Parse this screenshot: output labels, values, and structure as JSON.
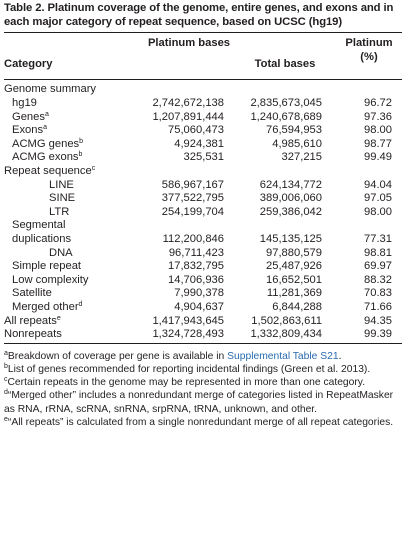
{
  "caption": {
    "label": "Table 2.",
    "title": "Platinum coverage of the genome, entire genes, and exons and in each major category of repeat sequence, based on UCSC (hg19)"
  },
  "header": {
    "category": "Category",
    "platinum_bases": "Platinum bases",
    "total_bases": "Total bases",
    "platinum_pct": "Platinum (%)"
  },
  "rows": [
    {
      "category": "Genome summary",
      "sup": "",
      "indent": 0,
      "platinum": "",
      "total": "",
      "pct": ""
    },
    {
      "category": "hg19",
      "sup": "",
      "indent": 1,
      "platinum": "2,742,672,138",
      "total": "2,835,673,045",
      "pct": "96.72"
    },
    {
      "category": "Genes",
      "sup": "a",
      "indent": 1,
      "platinum": "1,207,891,444",
      "total": "1,240,678,689",
      "pct": "97.36"
    },
    {
      "category": "Exons",
      "sup": "a",
      "indent": 1,
      "platinum": "75,060,473",
      "total": "76,594,953",
      "pct": "98.00"
    },
    {
      "category": "ACMG genes",
      "sup": "b",
      "indent": 1,
      "platinum": "4,924,381",
      "total": "4,985,610",
      "pct": "98.77"
    },
    {
      "category": "ACMG exons",
      "sup": "b",
      "indent": 1,
      "platinum": "325,531",
      "total": "327,215",
      "pct": "99.49"
    },
    {
      "category": "Repeat sequence",
      "sup": "c",
      "indent": 0,
      "platinum": "",
      "total": "",
      "pct": ""
    },
    {
      "category": "LINE",
      "sup": "",
      "indent": 2,
      "platinum": "586,967,167",
      "total": "624,134,772",
      "pct": "94.04"
    },
    {
      "category": "SINE",
      "sup": "",
      "indent": 2,
      "platinum": "377,522,795",
      "total": "389,006,060",
      "pct": "97.05"
    },
    {
      "category": "LTR",
      "sup": "",
      "indent": 2,
      "platinum": "254,199,704",
      "total": "259,386,042",
      "pct": "98.00"
    },
    {
      "category": "Segmental duplications",
      "sup": "",
      "indent": 1,
      "platinum": "112,200,846",
      "total": "145,135,125",
      "pct": "77.31",
      "wrap": true
    },
    {
      "category": "DNA",
      "sup": "",
      "indent": 2,
      "platinum": "96,711,423",
      "total": "97,880,579",
      "pct": "98.81"
    },
    {
      "category": "Simple repeat",
      "sup": "",
      "indent": 1,
      "platinum": "17,832,795",
      "total": "25,487,926",
      "pct": "69.97"
    },
    {
      "category": "Low complexity",
      "sup": "",
      "indent": 1,
      "platinum": "14,706,936",
      "total": "16,652,501",
      "pct": "88.32"
    },
    {
      "category": "Satellite",
      "sup": "",
      "indent": 1,
      "platinum": "7,990,378",
      "total": "11,281,369",
      "pct": "70.83"
    },
    {
      "category": "Merged other",
      "sup": "d",
      "indent": 1,
      "platinum": "4,904,637",
      "total": "6,844,288",
      "pct": "71.66"
    },
    {
      "category": "All repeats",
      "sup": "e",
      "indent": 0,
      "platinum": "1,417,943,645",
      "total": "1,502,863,611",
      "pct": "94.35"
    },
    {
      "category": "Nonrepeats",
      "sup": "",
      "indent": 0,
      "platinum": "1,324,728,493",
      "total": "1,332,809,434",
      "pct": "99.39"
    }
  ],
  "notes": [
    {
      "mark": "a",
      "text": "Breakdown of coverage per gene is available in ",
      "link": "Supplemental Table S21",
      "after": "."
    },
    {
      "mark": "b",
      "text": "List of genes recommended for reporting incidental findings (Green et al. 2013).",
      "link": "",
      "after": ""
    },
    {
      "mark": "c",
      "text": "Certain repeats in the genome may be represented in more than one category.",
      "link": "",
      "after": ""
    },
    {
      "mark": "d",
      "text": "“Merged other” includes a nonredundant merge of categories listed in RepeatMasker as RNA, rRNA, scRNA, snRNA, srpRNA, tRNA, unknown, and other.",
      "link": "",
      "after": ""
    },
    {
      "mark": "e",
      "text": "“All repeats” is calculated from a single nonredundant merge of all repeat categories.",
      "link": "",
      "after": ""
    }
  ],
  "colors": {
    "text": "#231f20",
    "link": "#2a6bb0"
  }
}
